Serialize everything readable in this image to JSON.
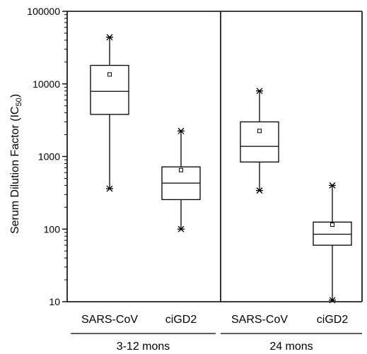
{
  "chart_data": {
    "type": "boxplot",
    "y_scale": "log",
    "ylim": [
      10,
      100000
    ],
    "yticks": [
      "10",
      "100",
      "1000",
      "10000",
      "100000"
    ],
    "ylabel_main": "Serum Dilution Factor (IC",
    "ylabel_sub": "50",
    "ylabel_end": ")",
    "groups": [
      {
        "label": "3-12 mons"
      },
      {
        "label": "24 mons"
      }
    ],
    "boxes": [
      {
        "category": "SARS-CoV",
        "group": 0,
        "min": 360,
        "q1": 3800,
        "median": 7900,
        "q3": 18000,
        "max": 44000,
        "mean": 13500
      },
      {
        "category": "ciGD2",
        "group": 0,
        "min": 100,
        "q1": 255,
        "median": 430,
        "q3": 720,
        "max": 2250,
        "mean": 650
      },
      {
        "category": "SARS-CoV",
        "group": 1,
        "min": 340,
        "q1": 840,
        "median": 1380,
        "q3": 3000,
        "max": 8000,
        "mean": 2250
      },
      {
        "category": "ciGD2",
        "group": 1,
        "min": 10.5,
        "q1": 60,
        "median": 85,
        "q3": 125,
        "max": 400,
        "mean": 115
      }
    ]
  }
}
